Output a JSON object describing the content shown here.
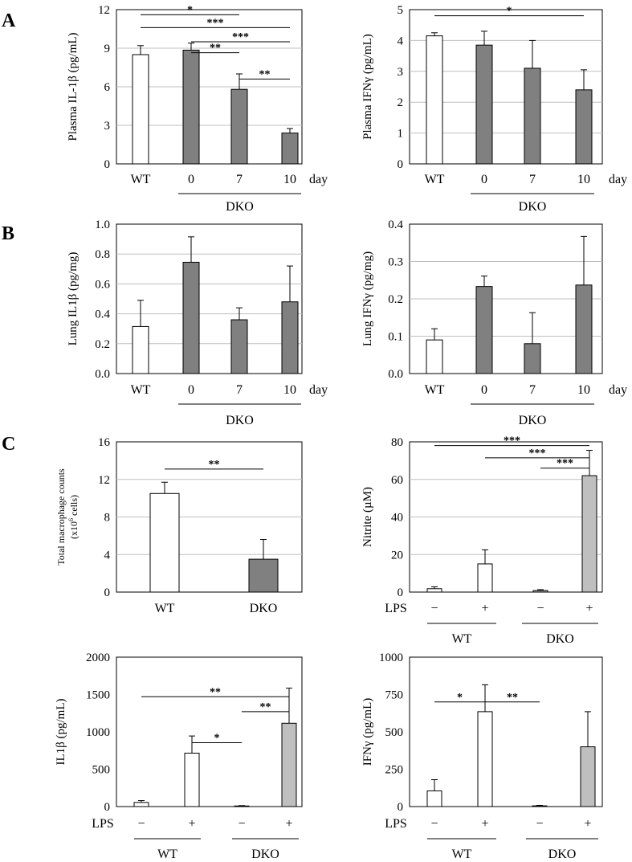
{
  "panel_labels": [
    "A",
    "B",
    "C"
  ],
  "colors": {
    "wt": "#ffffff",
    "dko_dark": "#808080",
    "dko_light": "#bfbfbf",
    "axis": "#000000",
    "grid": "#bfbfbf"
  },
  "chart_data": [
    {
      "id": "il1b_plasma",
      "type": "bar",
      "panel": "A",
      "ylabel": "Plasma IL-1β (pg/mL)",
      "ylim": [
        0,
        12
      ],
      "yticks": [
        0,
        3,
        6,
        9,
        12
      ],
      "ytick_labels": [
        "0",
        "3",
        "6",
        "9",
        "12"
      ],
      "categories": [
        "WT",
        "0",
        "7",
        "10"
      ],
      "category_unit": "day",
      "group_label": "DKO",
      "values": [
        8.5,
        8.85,
        5.8,
        2.4
      ],
      "errors": [
        0.7,
        0.55,
        1.2,
        0.35
      ],
      "bar_colors": [
        "wt",
        "dko_dark",
        "dko_dark",
        "dko_dark"
      ],
      "grid": true,
      "significance": [
        {
          "from": 0,
          "to": 2,
          "level": 11.6,
          "label": "*"
        },
        {
          "from": 0,
          "to": 3,
          "level": 10.6,
          "label": "***"
        },
        {
          "from": 1,
          "to": 3,
          "level": 9.5,
          "label": "***"
        },
        {
          "from": 1,
          "to": 2,
          "level": 8.65,
          "label": "**"
        },
        {
          "from": 2,
          "to": 3,
          "level": 6.6,
          "label": "**"
        }
      ]
    },
    {
      "id": "ifng_plasma",
      "type": "bar",
      "panel": "A",
      "ylabel": "Plasma IFNγ (pg/mL)",
      "ylim": [
        0,
        5
      ],
      "yticks": [
        0,
        1,
        2,
        3,
        4,
        5
      ],
      "ytick_labels": [
        "0",
        "1",
        "2",
        "3",
        "4",
        "5"
      ],
      "categories": [
        "WT",
        "0",
        "7",
        "10"
      ],
      "category_unit": "day",
      "group_label": "DKO",
      "values": [
        4.15,
        3.85,
        3.1,
        2.4
      ],
      "errors": [
        0.1,
        0.45,
        0.9,
        0.65
      ],
      "bar_colors": [
        "wt",
        "dko_dark",
        "dko_dark",
        "dko_dark"
      ],
      "grid": true,
      "significance": [
        {
          "from": 0,
          "to": 3,
          "level": 4.8,
          "label": "*"
        }
      ]
    },
    {
      "id": "il1b_lung",
      "type": "bar",
      "panel": "B",
      "ylabel": "Lung IL1β (pg/mg)",
      "ylim": [
        0,
        1.0
      ],
      "yticks": [
        0,
        0.2,
        0.4,
        0.6,
        0.8,
        1.0
      ],
      "ytick_labels": [
        "0.0",
        "0.2",
        "0.4",
        "0.6",
        "0.8",
        "1.0"
      ],
      "categories": [
        "WT",
        "0",
        "7",
        "10"
      ],
      "category_unit": "day",
      "group_label": "DKO",
      "values": [
        0.315,
        0.745,
        0.36,
        0.48
      ],
      "errors": [
        0.175,
        0.17,
        0.08,
        0.24
      ],
      "bar_colors": [
        "wt",
        "dko_dark",
        "dko_dark",
        "dko_dark"
      ],
      "grid": true,
      "significance": []
    },
    {
      "id": "ifng_lung",
      "type": "bar",
      "panel": "B",
      "ylabel": "Lung IFNγ (pg/mg)",
      "ylim": [
        0,
        0.4
      ],
      "yticks": [
        0,
        0.1,
        0.2,
        0.3,
        0.4
      ],
      "ytick_labels": [
        "0.0",
        "0.1",
        "0.2",
        "0.3",
        "0.4"
      ],
      "categories": [
        "WT",
        "0",
        "7",
        "10"
      ],
      "category_unit": "day",
      "group_label": "DKO",
      "values": [
        0.09,
        0.233,
        0.08,
        0.237
      ],
      "errors": [
        0.03,
        0.028,
        0.083,
        0.13
      ],
      "bar_colors": [
        "wt",
        "dko_dark",
        "dko_dark",
        "dko_dark"
      ],
      "grid": true,
      "significance": []
    },
    {
      "id": "macrophage_counts",
      "type": "bar",
      "panel": "C",
      "ylabel": "Total macrophage counts",
      "ylabel_line2_base": "(x10",
      "ylabel_line2_sup": "6",
      "ylabel_line2_end": " cells)",
      "ylim": [
        0,
        16
      ],
      "yticks": [
        0,
        4,
        8,
        12,
        16
      ],
      "ytick_labels": [
        "0",
        "4",
        "8",
        "12",
        "16"
      ],
      "categories": [
        "WT",
        "DKO"
      ],
      "values": [
        10.5,
        3.5
      ],
      "errors": [
        1.2,
        2.1
      ],
      "bar_colors": [
        "wt",
        "dko_dark"
      ],
      "grid": true,
      "significance": [
        {
          "from": 0,
          "to": 1,
          "level": 13.1,
          "label": "**"
        }
      ]
    },
    {
      "id": "nitrite",
      "type": "bar",
      "panel": "C",
      "ylabel": "Nitrite (µM)",
      "ylim": [
        0,
        80
      ],
      "yticks": [
        0,
        20,
        40,
        60,
        80
      ],
      "ytick_labels": [
        "0",
        "20",
        "40",
        "60",
        "80"
      ],
      "row_label": "LPS",
      "categories": [
        "−",
        "+",
        "−",
        "+"
      ],
      "groups": [
        "WT",
        "DKO"
      ],
      "values": [
        1.8,
        15.0,
        0.8,
        62.0
      ],
      "errors": [
        1.0,
        7.5,
        0.5,
        13.5
      ],
      "bar_colors": [
        "wt",
        "wt",
        "dko_light",
        "dko_light"
      ],
      "grid": true,
      "significance": [
        {
          "from": 0,
          "to": 3,
          "level": 78.0,
          "label": "***"
        },
        {
          "from": 1,
          "to": 3,
          "level": 71.5,
          "label": "***"
        },
        {
          "from": 2,
          "to": 3,
          "level": 66.0,
          "label": "***"
        }
      ]
    },
    {
      "id": "il1b_macrophage",
      "type": "bar",
      "panel": "C",
      "ylabel": "IL1β (pg/mL)",
      "ylim": [
        0,
        2000
      ],
      "yticks": [
        0,
        500,
        1000,
        1500,
        2000
      ],
      "ytick_labels": [
        "0",
        "500",
        "1000",
        "1500",
        "2000"
      ],
      "row_label": "LPS",
      "categories": [
        "−",
        "+",
        "−",
        "+"
      ],
      "groups": [
        "WT",
        "DKO"
      ],
      "values": [
        55,
        715,
        8,
        1115
      ],
      "errors": [
        25,
        230,
        5,
        470
      ],
      "bar_colors": [
        "wt",
        "wt",
        "dko_light",
        "dko_light"
      ],
      "grid": false,
      "significance": [
        {
          "from": 0,
          "to": 3,
          "level": 1470,
          "label": "**"
        },
        {
          "from": 2,
          "to": 3,
          "level": 1270,
          "label": "**"
        },
        {
          "from": 1,
          "to": 2,
          "level": 855,
          "label": "*"
        }
      ]
    },
    {
      "id": "ifng_macrophage",
      "type": "bar",
      "panel": "C",
      "ylabel": "IFNγ (pg/mL)",
      "ylim": [
        0,
        1000
      ],
      "yticks": [
        0,
        250,
        500,
        750,
        1000
      ],
      "ytick_labels": [
        "0",
        "250",
        "500",
        "750",
        "1000"
      ],
      "row_label": "LPS",
      "categories": [
        "−",
        "+",
        "−",
        "+"
      ],
      "groups": [
        "WT",
        "DKO"
      ],
      "values": [
        105,
        635,
        5,
        400
      ],
      "errors": [
        75,
        180,
        3,
        235
      ],
      "bar_colors": [
        "wt",
        "wt",
        "dko_light",
        "dko_light"
      ],
      "grid": false,
      "significance": [
        {
          "from": 0,
          "to": 1,
          "level": 700,
          "label": "*"
        },
        {
          "from": 1,
          "to": 2,
          "level": 700,
          "label": "**"
        }
      ]
    }
  ]
}
